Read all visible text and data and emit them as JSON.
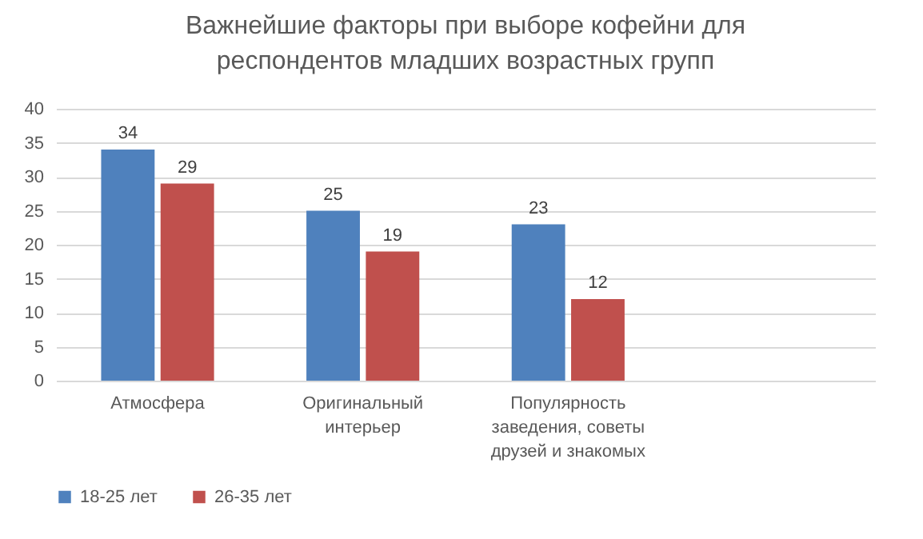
{
  "chart_data": {
    "type": "bar",
    "title": "Важнейшие факторы при выборе кофейни для респондентов младших возрастных групп",
    "categories": [
      "Атмосфера",
      "Оригинальный интерьер",
      "Популярность заведения, советы друзей и знакомых",
      null
    ],
    "series": [
      {
        "name": "18-25 лет",
        "color": "#4f81bd",
        "values": [
          34,
          25,
          23,
          null
        ]
      },
      {
        "name": "26-35 лет",
        "color": "#c0504d",
        "values": [
          29,
          19,
          12,
          null
        ]
      }
    ],
    "ylim": [
      0,
      40
    ],
    "yticks": [
      0,
      5,
      10,
      15,
      20,
      25,
      30,
      35,
      40
    ],
    "grid": "y",
    "legend": "bottom",
    "data_labels": true
  }
}
